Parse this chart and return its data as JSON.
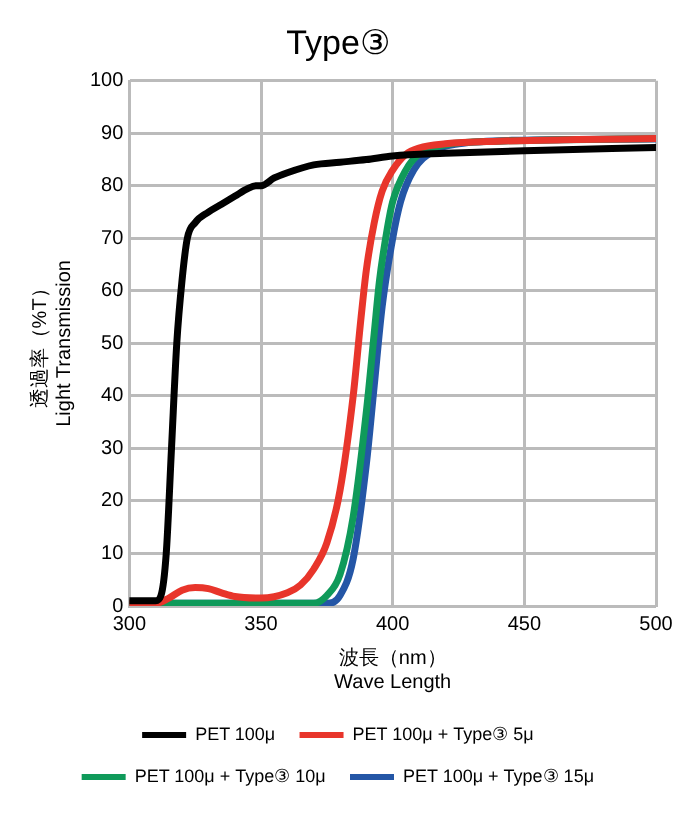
{
  "chart_data": {
    "type": "line",
    "title": "Type③",
    "xlabel": "波長（nm）\nWave Length",
    "ylabel": "透過率（%T）\nLight Transmission",
    "xlim": [
      300,
      500
    ],
    "xticks": [
      300,
      350,
      400,
      450,
      500
    ],
    "ylim": [
      0,
      100
    ],
    "yticks": [
      0,
      10,
      20,
      30,
      40,
      50,
      60,
      70,
      80,
      90,
      100
    ],
    "grid": true,
    "legend": "bottom",
    "marker": "none",
    "line_style": "solid",
    "series": [
      {
        "name": "PET 100μ",
        "color": "#000000",
        "x": [
          300,
          310,
          312,
          314,
          316,
          318,
          320,
          322,
          325,
          330,
          335,
          340,
          345,
          348,
          350,
          355,
          360,
          370,
          380,
          390,
          400,
          420,
          450,
          500
        ],
        "values": [
          1,
          1,
          2,
          10,
          30,
          50,
          62,
          70,
          73,
          75,
          76.5,
          78,
          79.5,
          80,
          80,
          81.5,
          82.5,
          84,
          84.5,
          85,
          85.7,
          86.2,
          86.7,
          87.3
        ]
      },
      {
        "name": "PET 100μ + Type③ 5μ",
        "color": "#e8352b",
        "x": [
          300,
          310,
          315,
          320,
          325,
          330,
          335,
          340,
          350,
          360,
          365,
          370,
          375,
          380,
          385,
          388,
          390,
          393,
          396,
          400,
          405,
          410,
          420,
          440,
          470,
          500
        ],
        "values": [
          0.5,
          0.5,
          1.5,
          3,
          3.5,
          3.3,
          2.5,
          1.8,
          1.5,
          2.5,
          4,
          7,
          12,
          22,
          40,
          55,
          64,
          73,
          79,
          83,
          86,
          87.2,
          88,
          88.5,
          88.8,
          89
        ]
      },
      {
        "name": "PET 100μ + Type③ 10μ",
        "color": "#0f9a5a",
        "x": [
          300,
          370,
          375,
          380,
          385,
          390,
          393,
          395,
          398,
          400,
          405,
          410,
          420,
          440,
          500
        ],
        "values": [
          0.5,
          0.5,
          2,
          6,
          17,
          37,
          52,
          62,
          72,
          77,
          83,
          86,
          87.8,
          88.5,
          89
        ]
      },
      {
        "name": "PET 100μ + Type③ 15μ",
        "color": "#2456a6",
        "x": [
          300,
          375,
          380,
          385,
          390,
          393,
          396,
          400,
          403,
          408,
          415,
          425,
          450,
          500
        ],
        "values": [
          0.5,
          0.5,
          2,
          9,
          27,
          42,
          57,
          70,
          77,
          83,
          86.5,
          88,
          88.7,
          88.9
        ]
      }
    ]
  }
}
